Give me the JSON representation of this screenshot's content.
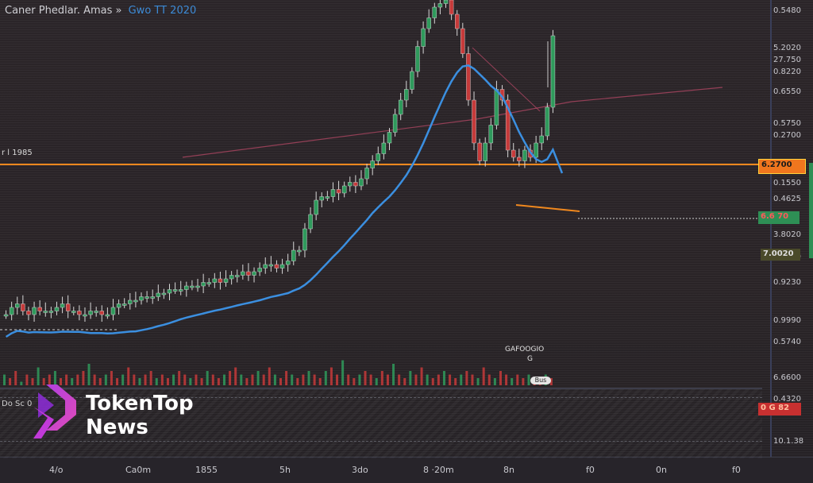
{
  "header": {
    "title": "Caner Phedlar. Amas »",
    "symbol": "Gwo TT 2020"
  },
  "level_label": "r l 1985",
  "sub_label": "Do Sc 0",
  "brand": {
    "line1": "TokenTop",
    "line2": "News"
  },
  "annotation": {
    "title": "GAFOOGIO",
    "sub": "G",
    "pill": "Bus"
  },
  "price_tags": {
    "orange": "6.2700",
    "green": "6.6 70",
    "red": "0 G 82",
    "mid": "7.0020"
  },
  "colors": {
    "up": "#2f9a5c",
    "down": "#c63a3a",
    "ma": "#3b8fe0",
    "level": "#f0881e",
    "trend": "#c04a6a"
  },
  "chart_data": {
    "type": "candlestick",
    "title": "",
    "y_axis_labels": [
      "0.5480",
      "5.2020",
      "27.750",
      "0.8220",
      "0.6550",
      "0.5750",
      "0.2700",
      "0.1550",
      "0.4625",
      "3.8020",
      "7.0020",
      "0.9230",
      "0.9990",
      "0.5740",
      "6.6600",
      "0.4320",
      "10.1.38"
    ],
    "x_axis_labels": [
      "4/o",
      "Ca0m",
      "1855",
      "5h",
      "3do",
      "8 ·20m",
      "8n",
      "f0",
      "0n",
      "f0"
    ],
    "ylim": [
      0,
      1
    ],
    "close_series": [
      0.12,
      0.14,
      0.15,
      0.13,
      0.12,
      0.14,
      0.13,
      0.13,
      0.13,
      0.14,
      0.15,
      0.13,
      0.13,
      0.12,
      0.12,
      0.13,
      0.13,
      0.12,
      0.12,
      0.14,
      0.15,
      0.15,
      0.16,
      0.16,
      0.17,
      0.17,
      0.17,
      0.18,
      0.18,
      0.19,
      0.19,
      0.19,
      0.2,
      0.2,
      0.2,
      0.21,
      0.21,
      0.22,
      0.21,
      0.22,
      0.23,
      0.23,
      0.24,
      0.23,
      0.24,
      0.25,
      0.26,
      0.26,
      0.25,
      0.26,
      0.27,
      0.3,
      0.3,
      0.36,
      0.4,
      0.44,
      0.45,
      0.45,
      0.47,
      0.46,
      0.48,
      0.49,
      0.48,
      0.5,
      0.53,
      0.55,
      0.57,
      0.6,
      0.63,
      0.68,
      0.72,
      0.75,
      0.8,
      0.87,
      0.92,
      0.95,
      0.98,
      0.99,
      1.0,
      0.96,
      0.92,
      0.85,
      0.72,
      0.6,
      0.55,
      0.6,
      0.65,
      0.75,
      0.72,
      0.58,
      0.56,
      0.55,
      0.58,
      0.56,
      0.6,
      0.62,
      0.7,
      0.9
    ],
    "volume_series": [
      0.3,
      0.2,
      0.4,
      0.1,
      0.3,
      0.2,
      0.5,
      0.2,
      0.3,
      0.4,
      0.2,
      0.3,
      0.2,
      0.3,
      0.4,
      0.6,
      0.3,
      0.2,
      0.3,
      0.4,
      0.2,
      0.3,
      0.5,
      0.3,
      0.2,
      0.3,
      0.4,
      0.2,
      0.3,
      0.2,
      0.3,
      0.4,
      0.3,
      0.2,
      0.3,
      0.2,
      0.4,
      0.3,
      0.2,
      0.3,
      0.4,
      0.5,
      0.3,
      0.2,
      0.3,
      0.4,
      0.3,
      0.5,
      0.3,
      0.2,
      0.4,
      0.3,
      0.2,
      0.3,
      0.4,
      0.3,
      0.2,
      0.4,
      0.5,
      0.3,
      0.7,
      0.3,
      0.2,
      0.3,
      0.4,
      0.3,
      0.2,
      0.4,
      0.3,
      0.6,
      0.3,
      0.2,
      0.4,
      0.3,
      0.5,
      0.3,
      0.2,
      0.3,
      0.4,
      0.3,
      0.2,
      0.3,
      0.4,
      0.3,
      0.2,
      0.5,
      0.3,
      0.2,
      0.4,
      0.3,
      0.2,
      0.3,
      0.2,
      0.3,
      0.2,
      0.2,
      0.3,
      0.2
    ]
  }
}
